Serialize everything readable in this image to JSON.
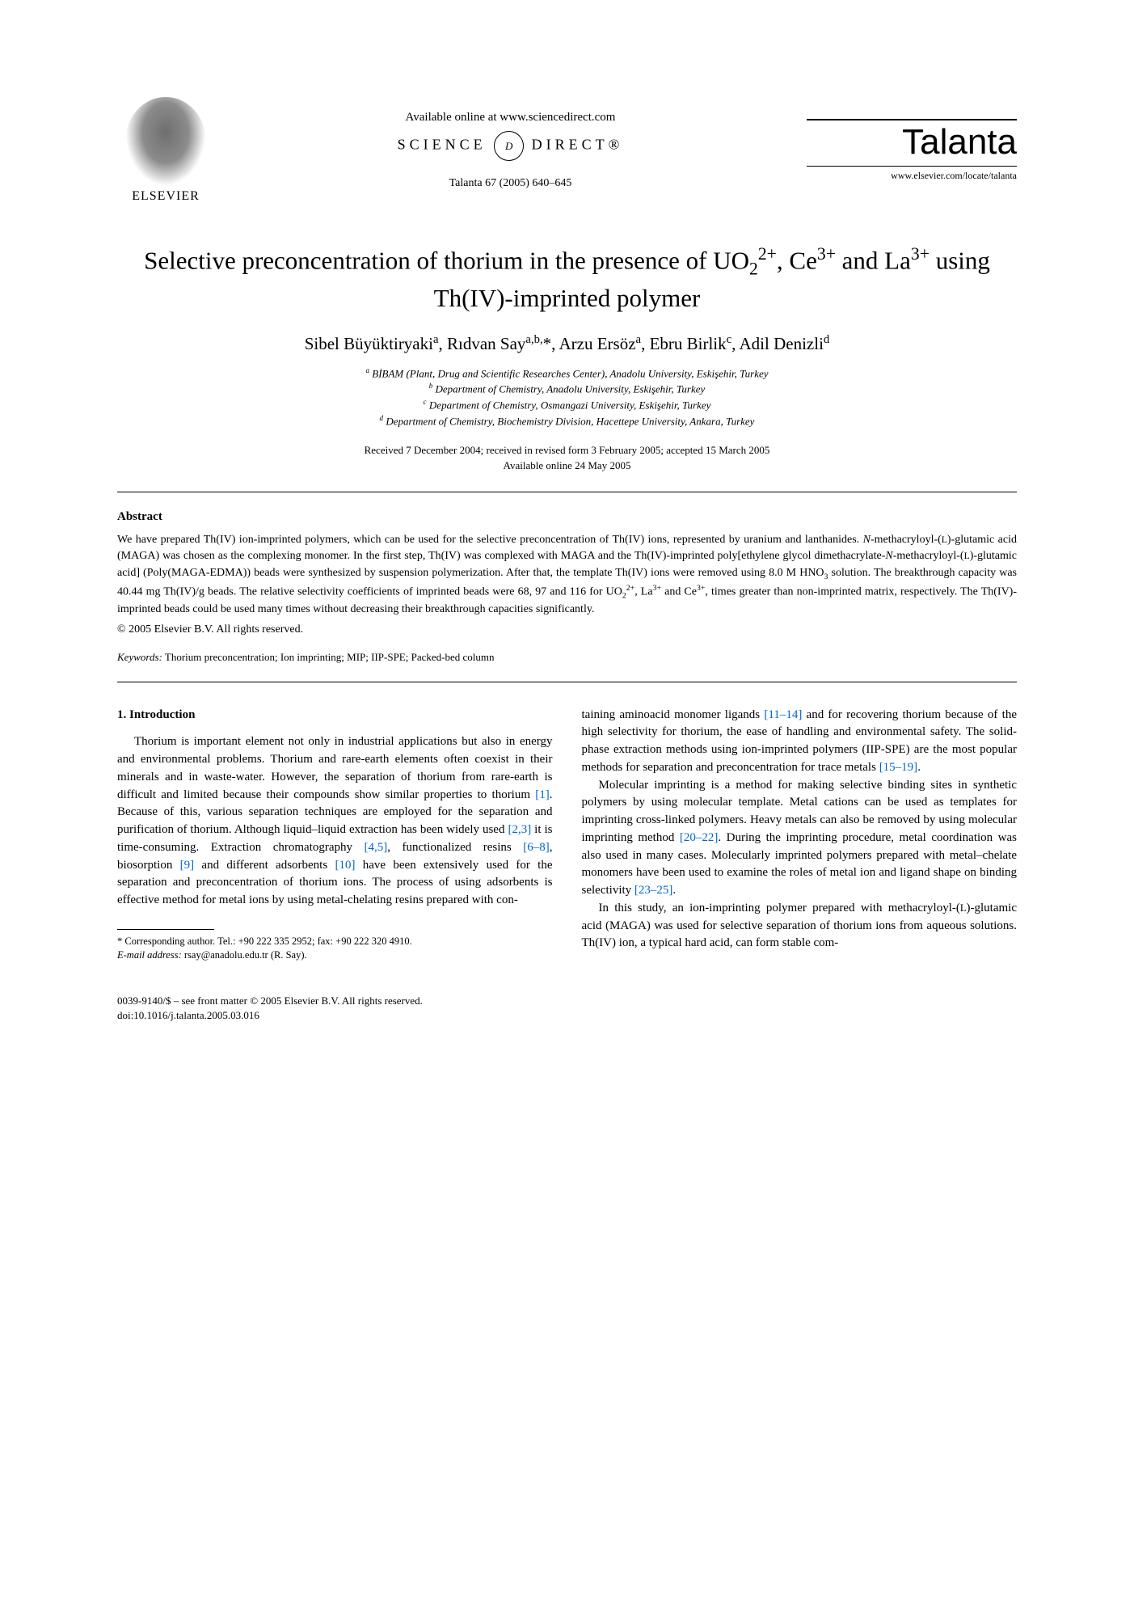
{
  "header": {
    "publisher": "ELSEVIER",
    "available": "Available online at www.sciencedirect.com",
    "sciencedirect": "SCIENCE",
    "sciencedirect2": "DIRECT®",
    "sd_d": "d",
    "citation": "Talanta 67 (2005) 640–645",
    "journal": "Talanta",
    "journal_url": "www.elsevier.com/locate/talanta"
  },
  "title_html": "Selective preconcentration of thorium in the presence of UO<sub>2</sub><sup>2+</sup>, Ce<sup>3+</sup> and La<sup>3+</sup> using Th(IV)-imprinted polymer",
  "authors_html": "Sibel Büyüktiryaki<sup>a</sup>, Rıdvan Say<sup>a,b,</sup>*, Arzu Ersöz<sup>a</sup>, Ebru Birlik<sup>c</sup>, Adil Denizli<sup>d</sup>",
  "affiliations": [
    "<sup>a</sup> BİBAM (Plant, Drug and Scientific Researches Center), Anadolu University, Eskişehir, Turkey",
    "<sup>b</sup> Department of Chemistry, Anadolu University, Eskişehir, Turkey",
    "<sup>c</sup> Department of Chemistry, Osmangazi University, Eskişehir, Turkey",
    "<sup>d</sup> Department of Chemistry, Biochemistry Division, Hacettepe University, Ankara, Turkey"
  ],
  "dates": {
    "received": "Received 7 December 2004; received in revised form 3 February 2005; accepted 15 March 2005",
    "online": "Available online 24 May 2005"
  },
  "abstract": {
    "heading": "Abstract",
    "text_html": "We have prepared Th(IV) ion-imprinted polymers, which can be used for the selective preconcentration of Th(IV) ions, represented by uranium and lanthanides. <i>N</i>-methacryloyl-(<small>L</small>)-glutamic acid (MAGA) was chosen as the complexing monomer. In the first step, Th(IV) was complexed with MAGA and the Th(IV)-imprinted poly[ethylene glycol dimethacrylate-<i>N</i>-methacryloyl-(<small>L</small>)-glutamic acid] (Poly(MAGA-EDMA)) beads were synthesized by suspension polymerization. After that, the template Th(IV) ions were removed using 8.0 M HNO<sub>3</sub> solution. The breakthrough capacity was 40.44 mg Th(IV)/g beads. The relative selectivity coefficients of imprinted beads were 68, 97 and 116 for UO<sub>2</sub><sup>2+</sup>, La<sup>3+</sup> and Ce<sup>3+</sup>, times greater than non-imprinted matrix, respectively. The Th(IV)-imprinted beads could be used many times without decreasing their breakthrough capacities significantly.",
    "copyright": "© 2005 Elsevier B.V. All rights reserved."
  },
  "keywords": {
    "label": "Keywords:",
    "text": " Thorium preconcentration; Ion imprinting; MIP; IIP-SPE; Packed-bed column"
  },
  "body": {
    "section_heading": "1.  Introduction",
    "left_html": "Thorium is important element not only in industrial applications but also in energy and environmental problems. Thorium and rare-earth elements often coexist in their minerals and in waste-water. However, the separation of thorium from rare-earth is difficult and limited because their compounds show similar properties to thorium <span class=\"cite\">[1]</span>. Because of this, various separation techniques are employed for the separation and purification of thorium. Although liquid–liquid extraction has been widely used <span class=\"cite\">[2,3]</span> it is time-consuming. Extraction chromatography <span class=\"cite\">[4,5]</span>, functionalized resins <span class=\"cite\">[6–8]</span>, biosorption <span class=\"cite\">[9]</span> and different adsorbents <span class=\"cite\">[10]</span> have been extensively used for the separation and preconcentration of thorium ions. The process of using adsorbents is effective method for metal ions by using metal-chelating resins prepared with con-",
    "right_p1_html": "taining aminoacid monomer ligands <span class=\"cite\">[11–14]</span> and for recovering thorium because of the high selectivity for thorium, the ease of handling and environmental safety. The solid-phase extraction methods using ion-imprinted polymers (IIP-SPE) are the most popular methods for separation and preconcentration for trace metals <span class=\"cite\">[15–19]</span>.",
    "right_p2_html": "Molecular imprinting is a method for making selective binding sites in synthetic polymers by using molecular template. Metal cations can be used as templates for imprinting cross-linked polymers. Heavy metals can also be removed by using molecular imprinting method <span class=\"cite\">[20–22]</span>. During the imprinting procedure, metal coordination was also used in many cases. Molecularly imprinted polymers prepared with metal–chelate monomers have been used to examine the roles of metal ion and ligand shape on binding selectivity <span class=\"cite\">[23–25]</span>.",
    "right_p3_html": "In this study, an ion-imprinting polymer prepared with methacryloyl-(<small>L</small>)-glutamic acid (MAGA) was used for selective separation of thorium ions from aqueous solutions. Th(IV) ion, a typical hard acid, can form stable com-"
  },
  "footnote": {
    "corr": "* Corresponding author. Tel.: +90 222 335 2952; fax: +90 222 320 4910.",
    "email_label": "E-mail address:",
    "email": " rsay@anadolu.edu.tr (R. Say)."
  },
  "bottom": {
    "issn": "0039-9140/$ – see front matter © 2005 Elsevier B.V. All rights reserved.",
    "doi": "doi:10.1016/j.talanta.2005.03.016"
  }
}
